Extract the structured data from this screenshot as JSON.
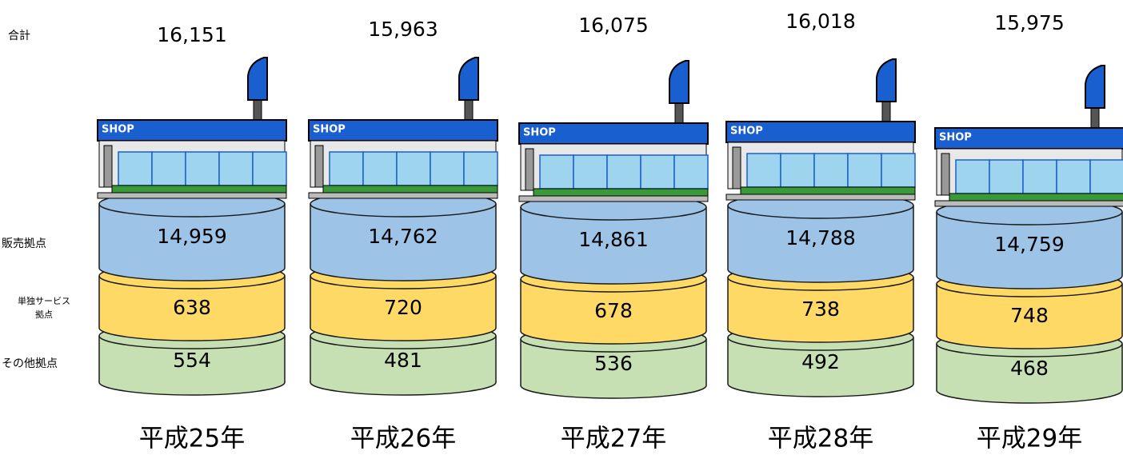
{
  "row_labels": {
    "total": "合計",
    "sales": "販売拠点",
    "service": [
      "単独サービス",
      "拠点"
    ],
    "other": "その他拠点"
  },
  "shop_sign": "SHOP",
  "columns": [
    {
      "year": "平成25年",
      "total": "16,151",
      "sales": "14,959",
      "service": "638",
      "other": "554"
    },
    {
      "year": "平成26年",
      "total": "15,963",
      "sales": "14,762",
      "service": "720",
      "other": "481"
    },
    {
      "year": "平成27年",
      "total": "16,075",
      "sales": "14,861",
      "service": "678",
      "other": "536"
    },
    {
      "year": "平成28年",
      "total": "16,018",
      "sales": "14,788",
      "service": "738",
      "other": "492"
    },
    {
      "year": "平成29年",
      "total": "15,975",
      "sales": "14,759",
      "service": "748",
      "other": "468"
    }
  ]
}
